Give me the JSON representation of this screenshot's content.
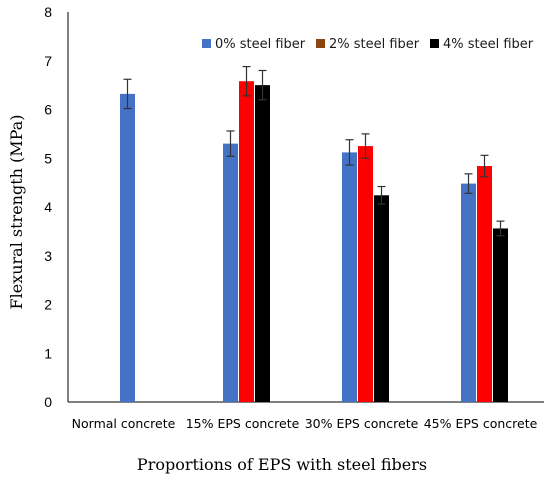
{
  "chart_data": {
    "type": "bar",
    "title": "",
    "xlabel": "Proportions of EPS with steel fibers",
    "ylabel": "Flexural strength (MPa)",
    "ylim": [
      0,
      8
    ],
    "yticks": [
      "0",
      "1",
      "2",
      "3",
      "4",
      "5",
      "6",
      "7",
      "8"
    ],
    "categories": [
      "Normal concrete",
      "15% EPS concrete",
      "30% EPS concrete",
      "45% EPS concrete"
    ],
    "legend_position": "top-right",
    "grid": false,
    "series": [
      {
        "name": "0% steel fiber",
        "color": "#4472c4",
        "values": [
          6.32,
          5.3,
          5.12,
          4.48
        ],
        "errors": [
          0.3,
          0.26,
          0.26,
          0.2
        ]
      },
      {
        "name": "2% steel fiber",
        "color": "#ff0000",
        "legend_color": "#8b4513",
        "values": [
          null,
          6.58,
          5.25,
          4.84
        ],
        "errors": [
          null,
          0.3,
          0.25,
          0.22
        ]
      },
      {
        "name": "4% steel fiber",
        "color": "#000000",
        "values": [
          null,
          6.5,
          4.24,
          3.56
        ],
        "errors": [
          null,
          0.3,
          0.18,
          0.15
        ]
      }
    ]
  }
}
